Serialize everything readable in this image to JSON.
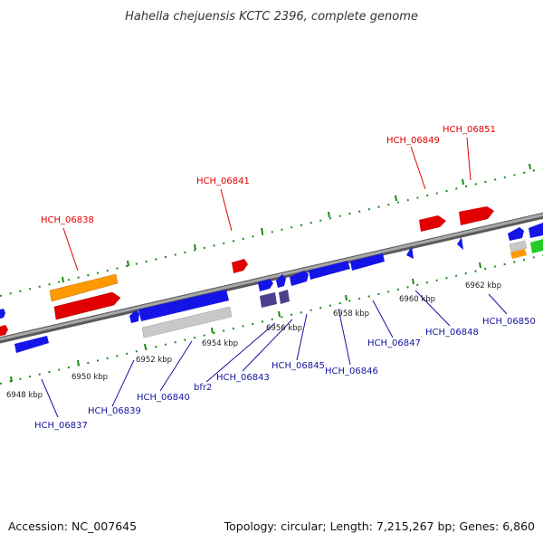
{
  "title": "Hahella chejuensis KCTC 2396, complete genome",
  "accession": "Accession: NC_007645",
  "summary": "Topology: circular; Length: 7,215,267 bp; Genes: 6,860",
  "colors": {
    "backbone": "#808080",
    "tick": "#1a8a1a",
    "gene_red": "#e00000",
    "gene_blue": "#1414e6",
    "gene_orange": "#ff9900",
    "gene_gray": "#c8c8c8",
    "gene_navy": "#4a3f8f",
    "gene_green": "#22cc22",
    "label_red": "#e00000",
    "label_blue": "#1414a0"
  },
  "tick_labels": [
    "6948 kbp",
    "6950 kbp",
    "6952 kbp",
    "6954 kbp",
    "6956 kbp",
    "6958 kbp",
    "6960 kbp",
    "6962 kbp"
  ],
  "genes_top": [
    "HCH_06838",
    "HCH_06841",
    "HCH_06849",
    "HCH_06851"
  ],
  "genes_bottom": [
    "HCH_06837",
    "HCH_06839",
    "HCH_06840",
    "bfr2",
    "HCH_06843",
    "HCH_06845",
    "HCH_06846",
    "HCH_06847",
    "HCH_06848",
    "HCH_06850"
  ]
}
